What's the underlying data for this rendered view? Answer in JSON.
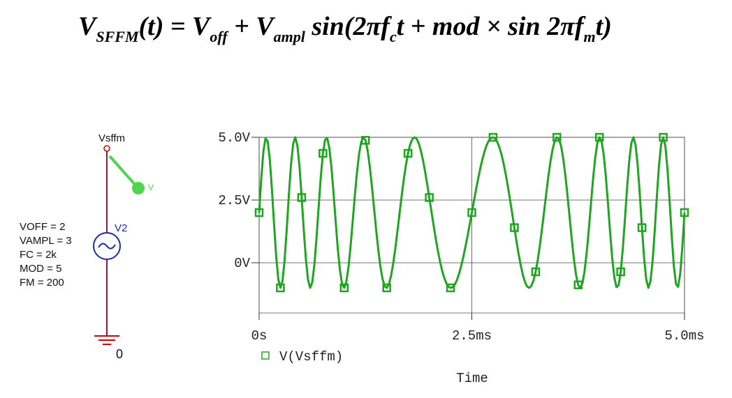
{
  "formula": [
    "V",
    "SFFM",
    "(t) = V",
    "off",
    " + V",
    "ampl",
    " sin(2πf",
    "c",
    "t + mod × sin 2πf",
    "m",
    "t)"
  ],
  "schematic": {
    "net_label": "Vsffm",
    "part_name": "V2",
    "params": [
      "VOFF = 2",
      "VAMPL = 3",
      "FC = 2k",
      "MOD = 5",
      "FM = 200"
    ],
    "ground_label": "0",
    "probe_label": "V"
  },
  "chart_data": {
    "type": "line",
    "x_label": "Time",
    "x": [
      0,
      0.025,
      0.05,
      0.075,
      0.1,
      0.125,
      0.15,
      0.175,
      0.2,
      0.225,
      0.25,
      0.275,
      0.3,
      0.325,
      0.35,
      0.375,
      0.4,
      0.425,
      0.45,
      0.475,
      0.5,
      0.525,
      0.55,
      0.575,
      0.6,
      0.625,
      0.65,
      0.675,
      0.7,
      0.725,
      0.75,
      0.775,
      0.8,
      0.825,
      0.85,
      0.875,
      0.9,
      0.925,
      0.95,
      0.975,
      1,
      1.025,
      1.05,
      1.075,
      1.1,
      1.125,
      1.15,
      1.175,
      1.2,
      1.225,
      1.25,
      1.275,
      1.3,
      1.325,
      1.35,
      1.375,
      1.4,
      1.425,
      1.45,
      1.475,
      1.5,
      1.525,
      1.55,
      1.575,
      1.6,
      1.625,
      1.65,
      1.675,
      1.7,
      1.725,
      1.75,
      1.775,
      1.8,
      1.825,
      1.85,
      1.875,
      1.9,
      1.925,
      1.95,
      1.975,
      2,
      2.025,
      2.05,
      2.075,
      2.1,
      2.125,
      2.15,
      2.175,
      2.2,
      2.225,
      2.25,
      2.275,
      2.3,
      2.325,
      2.35,
      2.375,
      2.4,
      2.425,
      2.45,
      2.475,
      2.5,
      2.525,
      2.55,
      2.575,
      2.6,
      2.625,
      2.65,
      2.675,
      2.7,
      2.725,
      2.75,
      2.775,
      2.8,
      2.825,
      2.85,
      2.875,
      2.9,
      2.925,
      2.95,
      2.975,
      3,
      3.025,
      3.05,
      3.075,
      3.1,
      3.125,
      3.15,
      3.175,
      3.2,
      3.225,
      3.25,
      3.275,
      3.3,
      3.325,
      3.35,
      3.375,
      3.4,
      3.425,
      3.45,
      3.475,
      3.5,
      3.525,
      3.55,
      3.575,
      3.6,
      3.625,
      3.65,
      3.675,
      3.7,
      3.725,
      3.75,
      3.775,
      3.8,
      3.825,
      3.85,
      3.875,
      3.9,
      3.925,
      3.95,
      3.975,
      4,
      4.025,
      4.05,
      4.075,
      4.1,
      4.125,
      4.15,
      4.175,
      4.2,
      4.225,
      4.25,
      4.275,
      4.3,
      4.325,
      4.35,
      4.375,
      4.4,
      4.425,
      4.45,
      4.475,
      4.5,
      4.525,
      4.55,
      4.575,
      4.6,
      4.625,
      4.65,
      4.675,
      4.7,
      4.725,
      4.75,
      4.775,
      4.8,
      4.825,
      4.85,
      4.875,
      4.9,
      4.925,
      4.95,
      4.975,
      5
    ],
    "series": [
      {
        "name": "V(Vsffm)",
        "color": "#1fa51f",
        "values": [
          2.0,
          3.36,
          4.43,
          4.96,
          4.85,
          4.13,
          2.94,
          1.56,
          0.27,
          -0.65,
          -1.0,
          -0.72,
          0.13,
          1.36,
          2.73,
          3.93,
          4.74,
          5.0,
          4.66,
          3.81,
          2.6,
          1.3,
          0.13,
          -0.69,
          -1.0,
          -0.77,
          -0.05,
          1.02,
          2.25,
          3.43,
          4.36,
          4.9,
          4.97,
          4.58,
          3.8,
          2.76,
          1.62,
          0.55,
          -0.31,
          -0.85,
          -1.0,
          -0.76,
          -0.18,
          0.67,
          1.66,
          2.68,
          3.6,
          4.34,
          4.82,
          5.0,
          4.88,
          4.48,
          3.85,
          3.07,
          2.2,
          1.33,
          0.53,
          -0.14,
          -0.64,
          -0.93,
          -1.0,
          -0.86,
          -0.53,
          -0.05,
          0.55,
          1.24,
          1.95,
          2.65,
          3.31,
          3.89,
          4.36,
          4.71,
          4.92,
          5.0,
          4.95,
          4.77,
          4.48,
          4.1,
          3.65,
          3.14,
          2.6,
          2.05,
          1.51,
          0.98,
          0.5,
          0.07,
          -0.3,
          -0.59,
          -0.81,
          -0.95,
          -1.0,
          -0.97,
          -0.87,
          -0.69,
          -0.44,
          -0.13,
          0.23,
          0.64,
          1.07,
          1.53,
          2.0,
          2.47,
          2.93,
          3.36,
          3.77,
          4.13,
          4.44,
          4.69,
          4.87,
          4.97,
          5.0,
          4.95,
          4.81,
          4.59,
          4.3,
          3.93,
          3.5,
          3.02,
          2.49,
          1.95,
          1.4,
          0.86,
          0.35,
          -0.1,
          -0.48,
          -0.77,
          -0.95,
          -1.0,
          -0.92,
          -0.71,
          -0.36,
          0.11,
          0.69,
          1.35,
          2.05,
          2.76,
          3.45,
          4.05,
          4.53,
          4.86,
          5.0,
          4.93,
          4.64,
          4.14,
          3.47,
          2.67,
          1.8,
          0.93,
          0.15,
          -0.48,
          -0.88,
          -1.0,
          -0.82,
          -0.34,
          0.4,
          1.32,
          2.34,
          3.33,
          4.18,
          4.76,
          5.0,
          4.85,
          4.31,
          3.45,
          2.38,
          1.24,
          0.2,
          -0.58,
          -0.97,
          -0.9,
          -0.36,
          0.57,
          1.75,
          2.98,
          4.05,
          4.77,
          5.0,
          4.69,
          3.87,
          2.7,
          1.4,
          0.19,
          -0.66,
          -1.0,
          -0.74,
          0.07,
          1.27,
          2.64,
          3.87,
          4.72,
          5.0,
          4.65,
          3.73,
          2.44,
          1.06,
          -0.13,
          -0.85,
          -0.96,
          -0.43,
          0.64,
          2.0
        ]
      }
    ],
    "xlim": [
      0,
      5
    ],
    "ylim": [
      -2,
      5
    ],
    "xticks": [
      {
        "value": 0,
        "label": "0s"
      },
      {
        "value": 2.5,
        "label": "2.5ms"
      },
      {
        "value": 5,
        "label": "5.0ms"
      }
    ],
    "yticks": [
      {
        "value": 0,
        "label": "0V"
      },
      {
        "value": 2.5,
        "label": "2.5V"
      },
      {
        "value": 5,
        "label": "5.0V"
      }
    ],
    "grid": true
  }
}
